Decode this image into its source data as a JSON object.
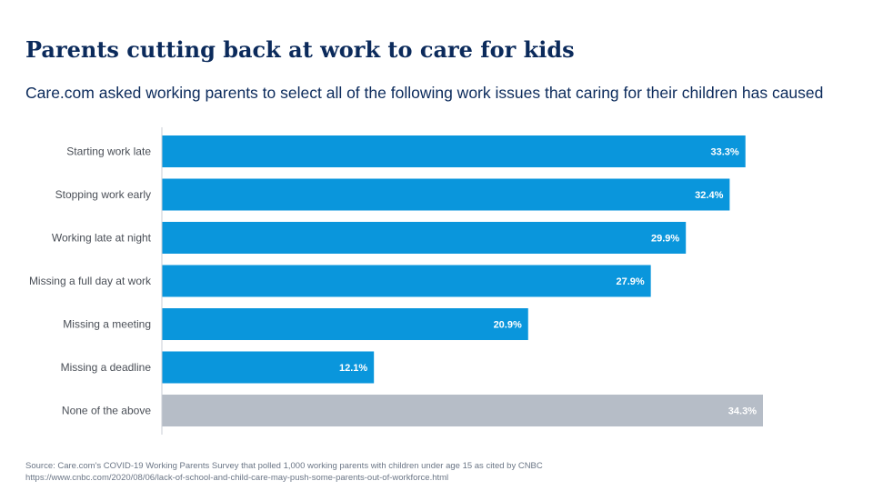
{
  "header": {
    "title": "Parents cutting back at work to care for kids",
    "subtitle": "Care.com asked working parents to select all of the following work issues that caring for their children has caused"
  },
  "colors": {
    "bar": "#0a96dc",
    "bar_highlight": "#b6bdc7",
    "axis": "#c9ced6",
    "category_text": "#4a4f57",
    "value_text": "#ffffff"
  },
  "chart_data": {
    "type": "bar",
    "orientation": "horizontal",
    "categories": [
      "Starting work late",
      "Stopping work early",
      "Working late at night",
      "Missing a full day at work",
      "Missing a meeting",
      "Missing a deadline",
      "None of the above"
    ],
    "values": [
      33.3,
      32.4,
      29.9,
      27.9,
      20.9,
      12.1,
      34.3
    ],
    "value_labels": [
      "33.3%",
      "32.4%",
      "29.9%",
      "27.9%",
      "20.9%",
      "12.1%",
      "34.3%"
    ],
    "highlight_category": "None of the above",
    "xlim": [
      0,
      34.3
    ],
    "grid": false
  },
  "footer": {
    "source_line1": "Source: Care.com's COVID-19 Working Parents Survey that polled 1,000 working parents with children under age 15 as cited by CNBC",
    "source_line2": "https://www.cnbc.com/2020/08/06/lack-of-school-and-child-care-may-push-some-parents-out-of-workforce.html"
  }
}
